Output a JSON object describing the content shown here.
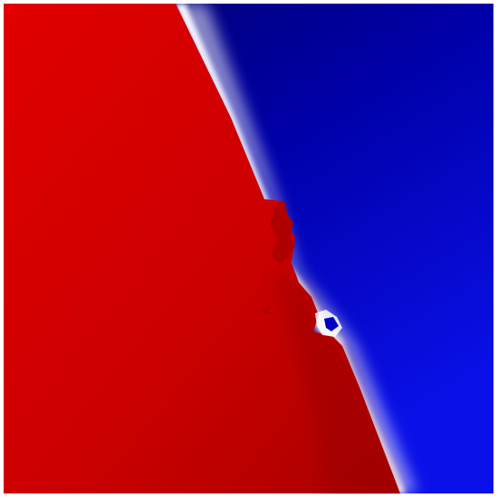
{
  "image": {
    "kind": "decision-boundary-heatmap",
    "colors": {
      "class_a": "#d40000",
      "class_a_dark": "#9a0000",
      "class_b": "#0000b8",
      "class_b_dark": "#000060",
      "boundary": "#ffffff",
      "background": "#ffffff"
    },
    "regions": [
      {
        "label": "",
        "color_key": "class_a",
        "side": "left"
      },
      {
        "label": "",
        "color_key": "class_b",
        "side": "right"
      }
    ]
  }
}
